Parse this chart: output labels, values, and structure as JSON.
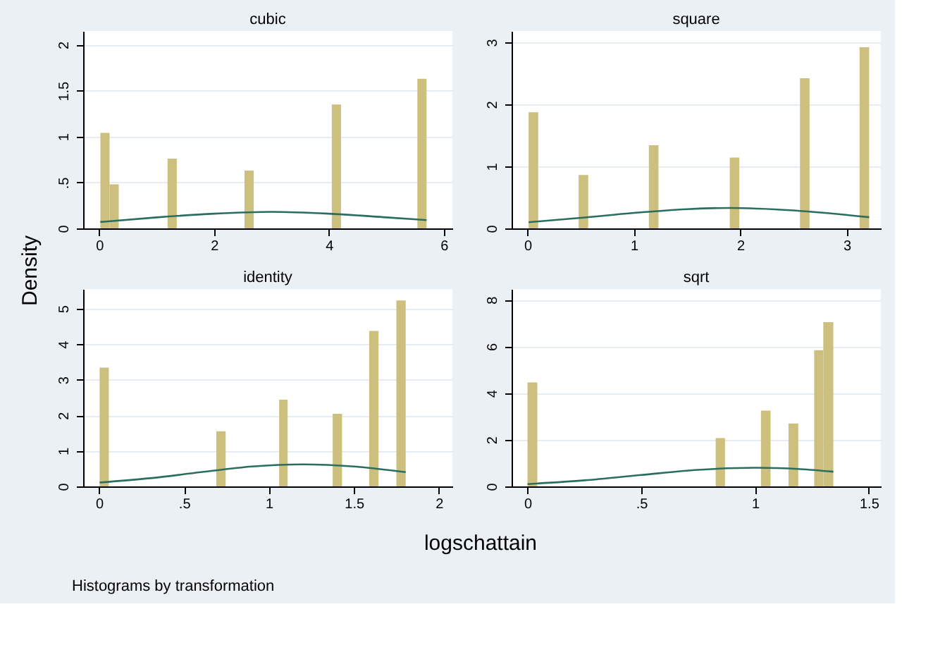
{
  "chart_data": [
    {
      "type": "histogram",
      "title": "cubic",
      "ylabel": "Density",
      "grid": "y",
      "xlim": [
        -0.28,
        6.15
      ],
      "xticks": [
        0,
        2,
        4,
        6
      ],
      "ylim": [
        0,
        2.15
      ],
      "yticks": [
        0,
        {
          "value": 0.5,
          "label": ".5"
        },
        1,
        1.5,
        2
      ],
      "series": [
        {
          "type": "histogram",
          "color": "#cdc07f",
          "bins": [
            0.02,
            0.18,
            0.34,
            1.19,
            1.35,
            2.53,
            2.69,
            4.05,
            4.21,
            5.54,
            5.7
          ],
          "values": [
            1.04,
            0.48,
            0,
            0.76,
            0,
            0.63,
            0,
            1.35,
            0,
            1.63
          ]
        },
        {
          "type": "line",
          "color": "#2a6e5e",
          "x": [
            0.02,
            1,
            2,
            3,
            4,
            5,
            5.7
          ],
          "values": [
            0.07,
            0.12,
            0.16,
            0.18,
            0.16,
            0.12,
            0.09
          ]
        }
      ]
    },
    {
      "type": "histogram",
      "title": "square",
      "grid": "y",
      "xlim": [
        -0.15,
        3.32
      ],
      "xticks": [
        0,
        1,
        2,
        3
      ],
      "ylim": [
        0,
        3.18
      ],
      "yticks": [
        0,
        1,
        2,
        3
      ],
      "series": [
        {
          "type": "histogram",
          "color": "#cdc07f",
          "bins": [
            0.01,
            0.1,
            0.48,
            0.57,
            1.14,
            1.23,
            1.9,
            1.99,
            2.56,
            2.65,
            3.12,
            3.21
          ],
          "values": [
            1.87,
            0,
            0.86,
            0,
            1.34,
            0,
            1.14,
            0,
            2.42,
            0,
            2.92
          ]
        },
        {
          "type": "line",
          "color": "#2a6e5e",
          "x": [
            0.01,
            0.5,
            1,
            1.5,
            1.9,
            2.5,
            3.21
          ],
          "values": [
            0.1,
            0.17,
            0.25,
            0.31,
            0.33,
            0.29,
            0.18
          ]
        }
      ]
    },
    {
      "type": "histogram",
      "title": "identity",
      "xlabel": "logschattain",
      "grid": "y",
      "annotations": [
        "Histograms by transformation"
      ],
      "xlim": [
        -0.094,
        2.08
      ],
      "xticks": [
        0,
        {
          "value": 0.5,
          "label": ".5"
        },
        1,
        1.5,
        2
      ],
      "ylim": [
        0,
        5.55
      ],
      "yticks": [
        0,
        1,
        2,
        3,
        4,
        5
      ],
      "series": [
        {
          "type": "histogram",
          "color": "#cdc07f",
          "bins": [
            0.003,
            0.057,
            0.69,
            0.745,
            1.06,
            1.11,
            1.375,
            1.43,
            1.59,
            1.645,
            1.75,
            1.805
          ],
          "values": [
            3.34,
            0,
            1.55,
            0,
            2.44,
            0,
            2.04,
            0,
            4.37,
            0,
            5.23
          ]
        },
        {
          "type": "line",
          "color": "#2a6e5e",
          "x": [
            0.003,
            0.3,
            0.6,
            0.9,
            1.2,
            1.5,
            1.805
          ],
          "values": [
            0.11,
            0.23,
            0.4,
            0.56,
            0.62,
            0.56,
            0.4
          ]
        }
      ]
    },
    {
      "type": "histogram",
      "title": "sqrt",
      "grid": "y",
      "xlim": [
        -0.07,
        1.553
      ],
      "xticks": [
        0,
        {
          "value": 0.5,
          "label": ".5"
        },
        1,
        1.5
      ],
      "ylim": [
        0,
        8.46
      ],
      "yticks": [
        0,
        2,
        4,
        6,
        8
      ],
      "series": [
        {
          "type": "histogram",
          "color": "#cdc07f",
          "bins": [
            0,
            0.043,
            0.827,
            0.868,
            1.026,
            1.068,
            1.147,
            1.19,
            1.26,
            1.3,
            1.344
          ],
          "values": [
            4.46,
            0,
            2.07,
            0,
            3.25,
            0,
            2.7,
            0,
            5.84,
            7.04
          ]
        },
        {
          "type": "line",
          "color": "#2a6e5e",
          "x": [
            0,
            0.25,
            0.5,
            0.75,
            1,
            1.2,
            1.344
          ],
          "values": [
            0.1,
            0.26,
            0.49,
            0.71,
            0.8,
            0.74,
            0.63
          ]
        }
      ]
    }
  ]
}
